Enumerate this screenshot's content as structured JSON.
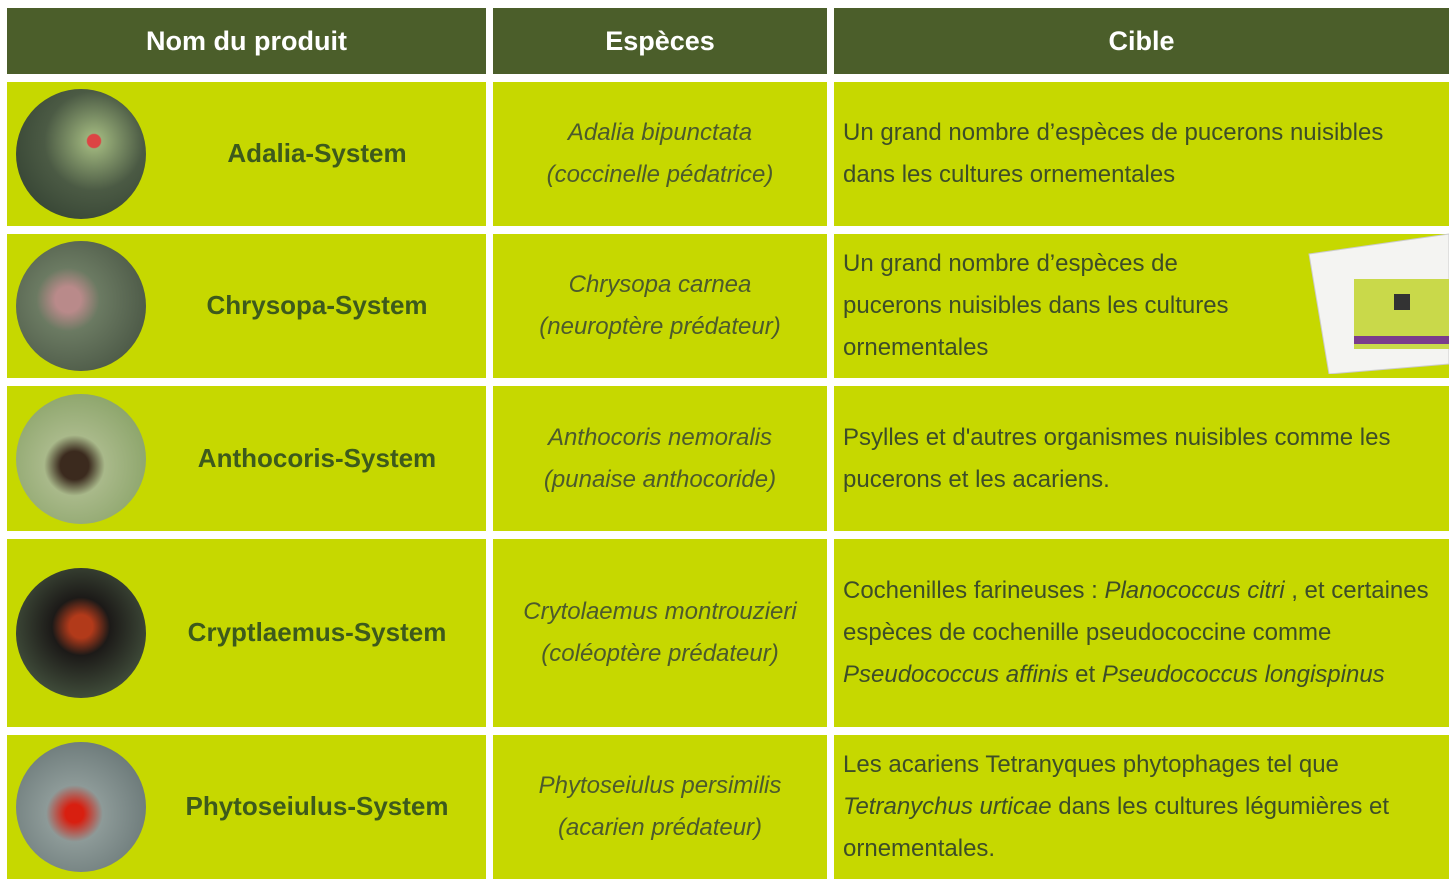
{
  "table": {
    "header": [
      "Nom du produit",
      "Espèces",
      "Cible"
    ],
    "rows": [
      {
        "product": "Adalia-System",
        "species": [
          "Adalia bipunctata",
          "(coccinelle pédatrice)"
        ],
        "target": [
          {
            "text": "Un grand nombre d’espèces de pucerons nuisibles dans les cultures ornementales",
            "italic": false
          }
        ]
      },
      {
        "product": "Chrysopa-System",
        "species": [
          "Chrysopa carnea",
          "(neuroptère prédateur)"
        ],
        "target": [
          {
            "text": "Un grand nombre d’espèces de pucerons nuisibles dans les cultures ornementales",
            "italic": false
          }
        ]
      },
      {
        "product": "Anthocoris-System",
        "species": [
          "Anthocoris nemoralis",
          "(punaise anthocoride)"
        ],
        "target": [
          {
            "text": "Psylles et d'autres organismes nuisibles comme les pucerons et les acariens.",
            "italic": false
          }
        ]
      },
      {
        "product": "Cryptlaemus-System",
        "species": [
          "Crytolaemus montrouzieri",
          "(coléoptère prédateur)"
        ],
        "target": [
          {
            "text": " Cochenilles farineuses : ",
            "italic": false
          },
          {
            "text": "Planococcus citri",
            "italic": true
          },
          {
            "text": " , et certaines espèces de cochenille pseudococcine comme ",
            "italic": false
          },
          {
            "text": "Pseudococcus affinis",
            "italic": true
          },
          {
            "text": " et ",
            "italic": false
          },
          {
            "text": "Pseudococcus longispinus",
            "italic": true
          }
        ]
      },
      {
        "product": "Phytoseiulus-System",
        "species": [
          "Phytoseiulus persimilis",
          "(acarien prédateur)"
        ],
        "target": [
          {
            "text": "Les acariens Tetranyques phytophages tel que ",
            "italic": false
          },
          {
            "text": "Tetranychus urticae",
            "italic": true
          },
          {
            "text": " dans les cultures légumières et ornementales.",
            "italic": false
          }
        ]
      }
    ]
  }
}
